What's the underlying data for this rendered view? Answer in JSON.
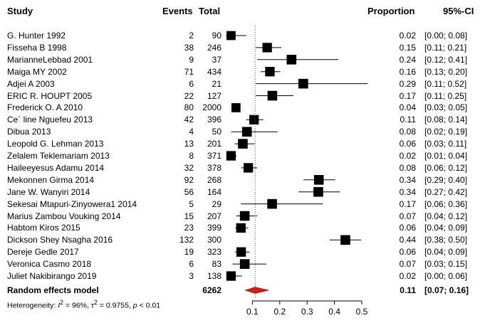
{
  "headers": {
    "study": "Study",
    "events": "Events",
    "total": "Total",
    "proportion": "Proportion",
    "ci": "95%-CI"
  },
  "chart_data": {
    "type": "forest",
    "xlim": [
      0,
      0.5
    ],
    "xticks": [
      0.1,
      0.2,
      0.3,
      0.4,
      0.5
    ],
    "xtick_labels": [
      "0.1",
      "0.2",
      "0.3",
      "0.4",
      "0.5"
    ],
    "summary_line": 0.11,
    "studies": [
      {
        "name": "G. Hunter 1992",
        "events": "2",
        "total": "90",
        "prop": "0.02",
        "ci": "[0.00; 0.08]",
        "est": 0.022,
        "lo": 0.003,
        "hi": 0.078,
        "weight": 0.45
      },
      {
        "name": "Fisseha B 1998",
        "events": "38",
        "total": "246",
        "prop": "0.15",
        "ci": "[0.11; 0.21]",
        "est": 0.154,
        "lo": 0.112,
        "hi": 0.206,
        "weight": 0.55
      },
      {
        "name": "MarianneLebbad 2001",
        "events": "9",
        "total": "37",
        "prop": "0.24",
        "ci": "[0.12; 0.41]",
        "est": 0.243,
        "lo": 0.118,
        "hi": 0.414,
        "weight": 0.6
      },
      {
        "name": "Maiga MY 2002",
        "events": "71",
        "total": "434",
        "prop": "0.16",
        "ci": "[0.13; 0.20]",
        "est": 0.164,
        "lo": 0.13,
        "hi": 0.202,
        "weight": 0.55
      },
      {
        "name": "Adjei A 2003",
        "events": "6",
        "total": "21",
        "prop": "0.29",
        "ci": "[0.11; 0.52]",
        "est": 0.286,
        "lo": 0.113,
        "hi": 0.522,
        "weight": 0.6
      },
      {
        "name": "ERIC R. HOUPT 2005",
        "events": "22",
        "total": "127",
        "prop": "0.17",
        "ci": "[0.11; 0.25]",
        "est": 0.173,
        "lo": 0.112,
        "hi": 0.25,
        "weight": 0.6
      },
      {
        "name": "Frederick O. A 2010",
        "events": "80",
        "total": "2000",
        "prop": "0.04",
        "ci": "[0.03; 0.05]",
        "est": 0.04,
        "lo": 0.032,
        "hi": 0.05,
        "weight": 0.45
      },
      {
        "name": "Ce´ line Nguefeu 2013",
        "events": "42",
        "total": "396",
        "prop": "0.11",
        "ci": "[0.08; 0.14]",
        "est": 0.106,
        "lo": 0.077,
        "hi": 0.14,
        "weight": 0.55
      },
      {
        "name": "Dibua 2013",
        "events": "4",
        "total": "50",
        "prop": "0.08",
        "ci": "[0.02; 0.19]",
        "est": 0.08,
        "lo": 0.022,
        "hi": 0.192,
        "weight": 0.6
      },
      {
        "name": "Leopold G. Lehman 2013",
        "events": "13",
        "total": "201",
        "prop": "0.06",
        "ci": "[0.03; 0.11]",
        "est": 0.065,
        "lo": 0.035,
        "hi": 0.108,
        "weight": 0.6
      },
      {
        "name": "Zelalem Teklemariam 2013",
        "events": "8",
        "total": "371",
        "prop": "0.02",
        "ci": "[0.01; 0.04]",
        "est": 0.022,
        "lo": 0.009,
        "hi": 0.042,
        "weight": 0.55
      },
      {
        "name": "Haileeyesus Adamu 2014",
        "events": "32",
        "total": "378",
        "prop": "0.08",
        "ci": "[0.06; 0.12]",
        "est": 0.085,
        "lo": 0.059,
        "hi": 0.117,
        "weight": 0.55
      },
      {
        "name": "Mekonnen Girma 2014",
        "events": "92",
        "total": "268",
        "prop": "0.34",
        "ci": "[0.29; 0.40]",
        "est": 0.343,
        "lo": 0.287,
        "hi": 0.403,
        "weight": 0.6
      },
      {
        "name": "Jane W. Wanyiri 2014",
        "events": "56",
        "total": "164",
        "prop": "0.34",
        "ci": "[0.27; 0.42]",
        "est": 0.341,
        "lo": 0.269,
        "hi": 0.42,
        "weight": 0.6
      },
      {
        "name": "Sekesai Mtapuri-Zinyowera1 2014",
        "events": "5",
        "total": "29",
        "prop": "0.17",
        "ci": "[0.06; 0.36]",
        "est": 0.172,
        "lo": 0.058,
        "hi": 0.358,
        "weight": 0.6
      },
      {
        "name": "Marius Zambou Vouking 2014",
        "events": "15",
        "total": "207",
        "prop": "0.07",
        "ci": "[0.04; 0.12]",
        "est": 0.072,
        "lo": 0.041,
        "hi": 0.117,
        "weight": 0.6
      },
      {
        "name": "Habtom Kiros 2015",
        "events": "23",
        "total": "399",
        "prop": "0.06",
        "ci": "[0.04; 0.09]",
        "est": 0.058,
        "lo": 0.037,
        "hi": 0.085,
        "weight": 0.55
      },
      {
        "name": "Dickson Shey Nsagha 2016",
        "events": "132",
        "total": "300",
        "prop": "0.44",
        "ci": "[0.38; 0.50]",
        "est": 0.44,
        "lo": 0.383,
        "hi": 0.498,
        "weight": 0.6
      },
      {
        "name": "Dereje Gedle 2017",
        "events": "19",
        "total": "323",
        "prop": "0.06",
        "ci": "[0.04; 0.09]",
        "est": 0.059,
        "lo": 0.036,
        "hi": 0.09,
        "weight": 0.55
      },
      {
        "name": "Veronica Casmo 2018",
        "events": "6",
        "total": "83",
        "prop": "0.07",
        "ci": "[0.03; 0.15]",
        "est": 0.072,
        "lo": 0.027,
        "hi": 0.151,
        "weight": 0.6
      },
      {
        "name": "Juliet Nakibirango 2019",
        "events": "3",
        "total": "138",
        "prop": "0.02",
        "ci": "[0.00; 0.06]",
        "est": 0.022,
        "lo": 0.005,
        "hi": 0.062,
        "weight": 0.55
      }
    ],
    "summary": {
      "label": "Random effects model",
      "total": "6262",
      "prop": "0.11",
      "ci": "[0.07; 0.16]",
      "est": 0.11,
      "lo": 0.074,
      "hi": 0.16
    },
    "heterogeneity": {
      "prefix": "Heterogeneity: ",
      "i2_label": "I",
      "i2_value": " = 96%, ",
      "tau2_label": "τ",
      "tau2_value": " = 0.9755, ",
      "p_label": "p",
      "p_value": " < 0.01"
    },
    "colors": {
      "square": "#000000",
      "diamond": "#d11a1a",
      "ref_line": "#555555"
    }
  }
}
